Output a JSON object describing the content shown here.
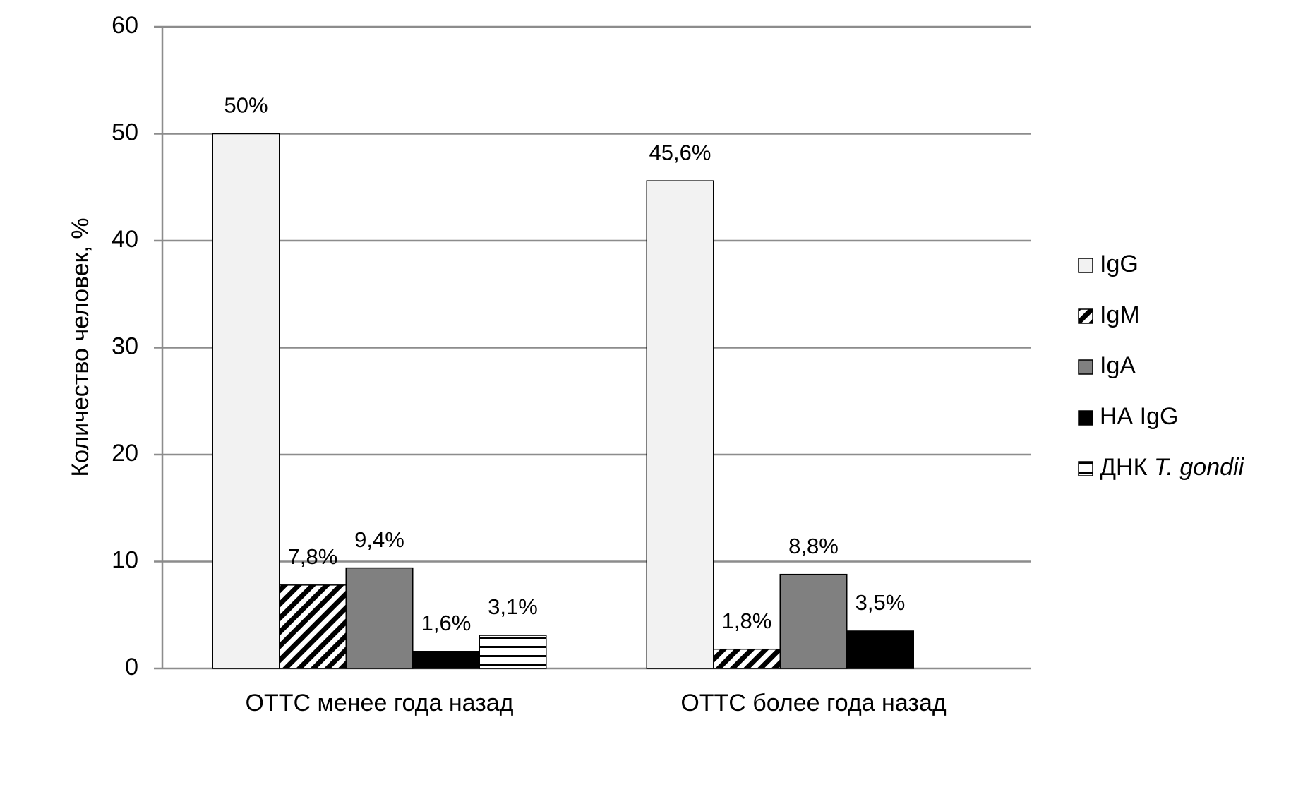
{
  "chart_data": {
    "type": "bar",
    "y_label": "Количество человек, %",
    "categories": [
      "ОТТС менее года назад",
      "ОТТС более года назад"
    ],
    "series": [
      {
        "name": "IgG",
        "color": "#f2f2f2",
        "pattern": "solid",
        "values": [
          50,
          45.6
        ],
        "value_labels": [
          "50%",
          "45,6%"
        ]
      },
      {
        "name": "IgM",
        "color": "#000000",
        "pattern": "diagonal",
        "values": [
          7.8,
          1.8
        ],
        "value_labels": [
          "7,8%",
          "1,8%"
        ]
      },
      {
        "name": "IgA",
        "color": "#808080",
        "pattern": "solid",
        "values": [
          9.4,
          8.8
        ],
        "value_labels": [
          "9,4%",
          "8,8%"
        ]
      },
      {
        "name": "НА IgG",
        "color": "#000000",
        "pattern": "solid",
        "values": [
          1.6,
          3.5
        ],
        "value_labels": [
          "1,6%",
          "3,5%"
        ]
      },
      {
        "name": "ДНК T. gondii",
        "color": "#000000",
        "pattern": "horizontal",
        "values": [
          3.1,
          null
        ],
        "value_labels": [
          "3,1%",
          null
        ]
      }
    ],
    "ylim": [
      0,
      60
    ],
    "yticks": [
      0,
      10,
      20,
      30,
      40,
      50,
      60
    ],
    "grid": true,
    "legend": "right"
  }
}
